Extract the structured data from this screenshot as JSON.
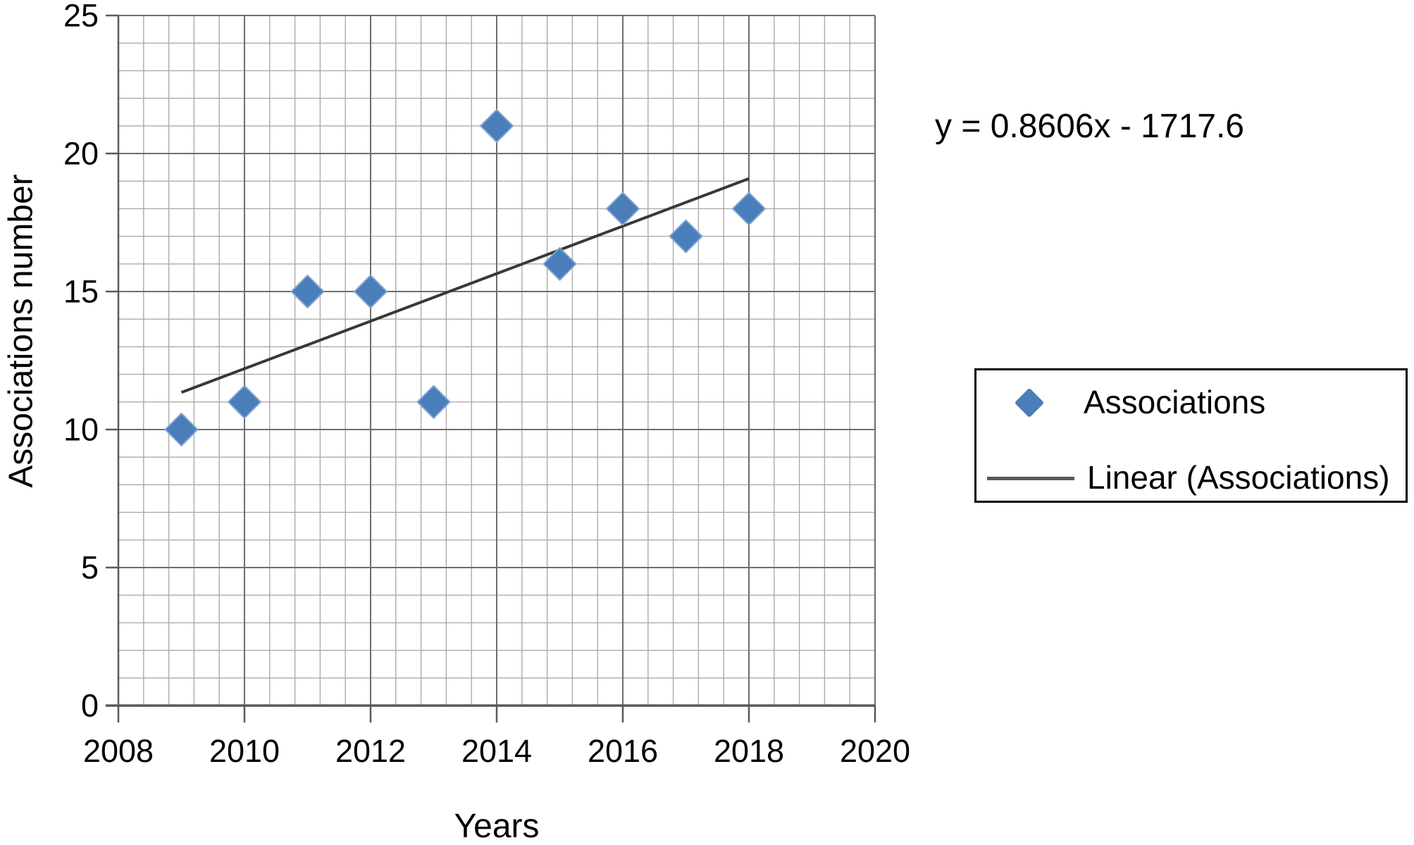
{
  "chart_data": {
    "type": "scatter",
    "title": "",
    "xlabel": "Years",
    "ylabel": "Associations number",
    "xlim": [
      2008,
      2020
    ],
    "ylim": [
      0,
      25
    ],
    "x_ticks": [
      2008,
      2010,
      2012,
      2014,
      2016,
      2018,
      2020
    ],
    "y_ticks": [
      0,
      5,
      10,
      15,
      20,
      25
    ],
    "minor_x_step": 0.4,
    "minor_y_step": 1,
    "grid": "major and minor, both axes",
    "legend_position": "right",
    "series": [
      {
        "name": "Associations",
        "marker": "diamond",
        "x": [
          2009,
          2010,
          2011,
          2012,
          2013,
          2014,
          2015,
          2016,
          2017,
          2018
        ],
        "y": [
          10,
          11,
          15,
          15,
          11,
          21,
          16,
          18,
          17,
          18
        ]
      }
    ],
    "trendline": {
      "name": "Linear (Associations)",
      "equation": "y = 0.8606x - 1717.6",
      "slope": 0.8606,
      "intercept": -1717.6,
      "x_start": 2009,
      "x_end": 2018
    },
    "legend": {
      "entries": [
        {
          "label": "Associations",
          "marker": "diamond"
        },
        {
          "label": "Linear (Associations)",
          "marker": "line"
        }
      ]
    },
    "colors": {
      "marker": "#4a7ebb",
      "marker_edge": "#82a7d2",
      "trendline": "#383838",
      "legend_line": "#595959",
      "grid_minor": "#ababab",
      "grid_major": "#6e6e6e",
      "axis": "#595959",
      "text": "#000000"
    }
  }
}
